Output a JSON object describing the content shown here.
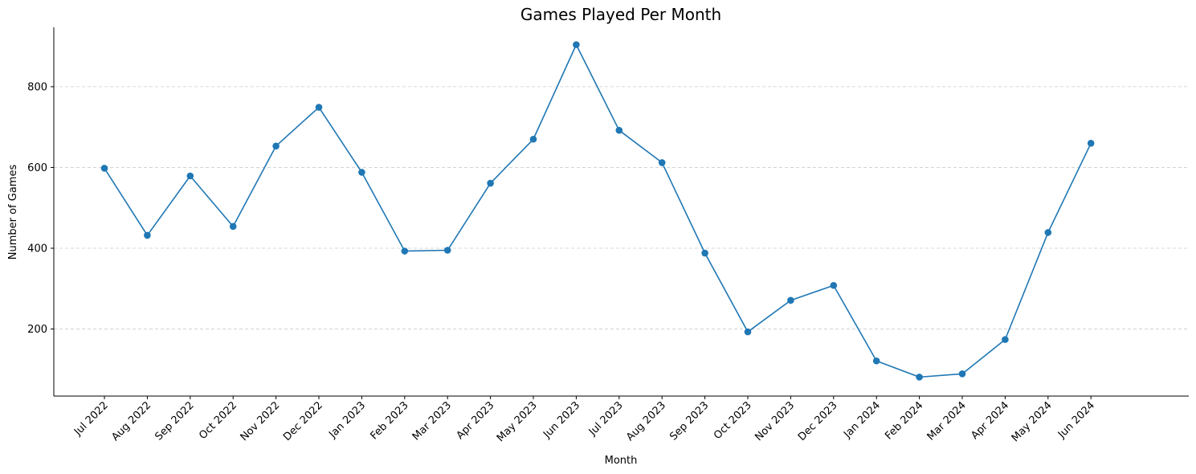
{
  "chart_data": {
    "type": "line",
    "title": "Games Played Per Month",
    "xlabel": "Month",
    "ylabel": "Number of Games",
    "categories": [
      "Jul 2022",
      "Aug 2022",
      "Sep 2022",
      "Oct 2022",
      "Nov 2022",
      "Dec 2022",
      "Jan 2023",
      "Feb 2023",
      "Mar 2023",
      "Apr 2023",
      "May 2023",
      "Jun 2023",
      "Jul 2023",
      "Aug 2023",
      "Sep 2023",
      "Oct 2023",
      "Nov 2023",
      "Dec 2023",
      "Jan 2024",
      "Feb 2024",
      "Mar 2024",
      "Apr 2024",
      "May 2024",
      "Jun 2024"
    ],
    "series": [
      {
        "values": [
          598,
          432,
          579,
          454,
          653,
          749,
          588,
          393,
          395,
          561,
          670,
          904,
          692,
          612,
          388,
          193,
          271,
          308,
          121,
          81,
          89,
          174,
          439,
          660
        ]
      }
    ],
    "ylim": [
      34,
      947
    ],
    "yticks": [
      200,
      400,
      600,
      800
    ],
    "grid": "horizontal dashed",
    "legend": "none",
    "colors": {
      "line": "#1f77b4",
      "marker": "#1f77b4",
      "grid": "#cccccc",
      "axis": "#000000"
    }
  }
}
